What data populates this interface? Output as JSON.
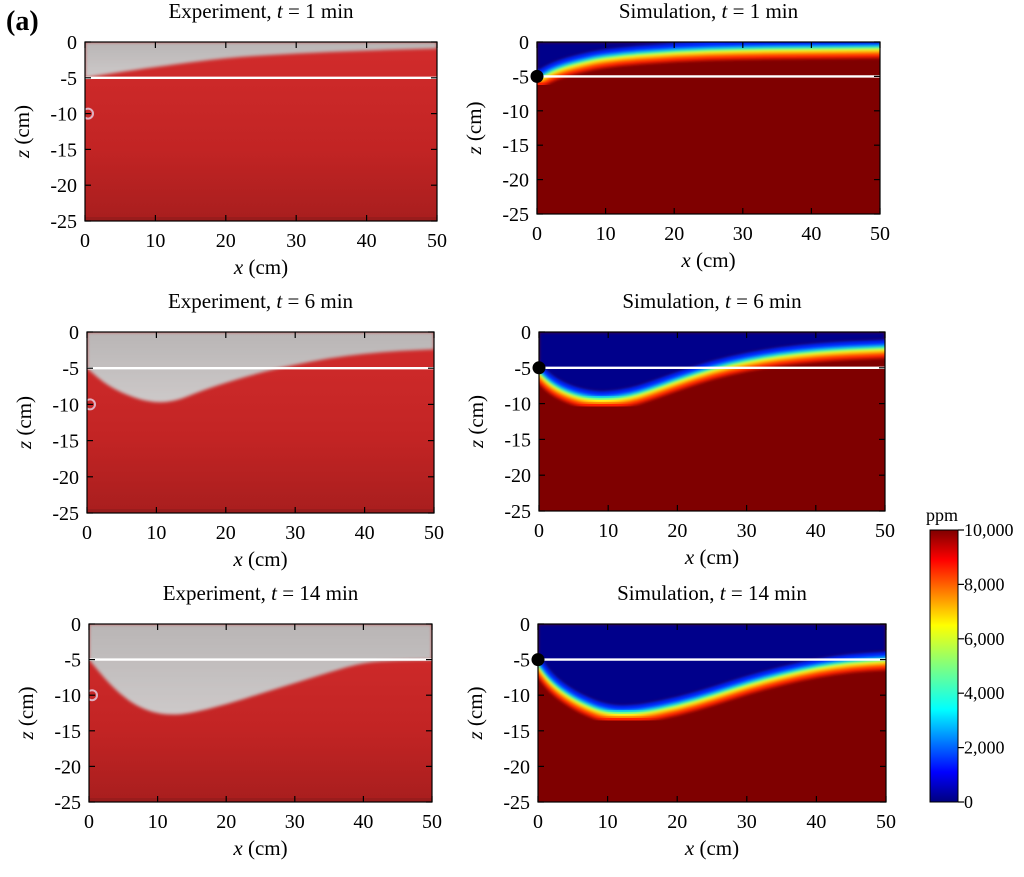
{
  "panel_label": "(a)",
  "colorbar": {
    "unit": "ppm",
    "ticks": [
      "10,000",
      "8,000",
      "6,000",
      "4,000",
      "2,000",
      "0"
    ],
    "min": 0,
    "max": 10000
  },
  "colors": {
    "plume_red": "#c62828",
    "saturated_red": "#7f0000",
    "fresh_blue": "#00008b",
    "experiment_gray": "#c4c0c0",
    "line_white": "#ffffff"
  },
  "chart_data": [
    {
      "type": "heatmap",
      "title": "Experiment, t = 1 min",
      "title_pre": "Experiment, ",
      "title_var": "t",
      "title_post": " = 1 min",
      "xlabel_var": "x",
      "xlabel_unit": " (cm)",
      "ylabel_var": "z",
      "ylabel_unit": " (cm)",
      "xlim": [
        0,
        50
      ],
      "ylim": [
        -25,
        0
      ],
      "xticks": [
        "0",
        "10",
        "20",
        "30",
        "40",
        "50"
      ],
      "yticks": [
        "0",
        "-5",
        "-10",
        "-15",
        "-20",
        "-25"
      ],
      "interface_depth": -5,
      "interface_x": [
        0,
        5,
        10,
        20,
        30,
        40,
        50
      ],
      "interface_z": [
        -5,
        -4.2,
        -3.5,
        -2.2,
        -1.6,
        -1.2,
        -0.9
      ]
    },
    {
      "type": "heatmap",
      "title": "Simulation, t = 1 min",
      "title_pre": "Simulation, ",
      "title_var": "t",
      "title_post": " = 1 min",
      "xlabel_var": "x",
      "xlabel_unit": " (cm)",
      "ylabel_var": "z",
      "ylabel_unit": " (cm)",
      "xlim": [
        0,
        50
      ],
      "ylim": [
        -25,
        0
      ],
      "xticks": [
        "0",
        "10",
        "20",
        "30",
        "40",
        "50"
      ],
      "yticks": [
        "0",
        "-5",
        "-10",
        "-15",
        "-20",
        "-25"
      ],
      "interface_depth": -5,
      "source_point": [
        0,
        -5
      ],
      "interface_x": [
        0,
        2,
        5,
        10,
        20,
        30,
        40,
        50
      ],
      "interface_z": [
        -5,
        -3.8,
        -2.8,
        -1.7,
        -0.9,
        -0.6,
        -0.5,
        -0.4
      ]
    },
    {
      "type": "heatmap",
      "title": "Experiment, t = 6 min",
      "title_pre": "Experiment, ",
      "title_var": "t",
      "title_post": " = 6 min",
      "xlabel_var": "x",
      "xlabel_unit": " (cm)",
      "ylabel_var": "z",
      "ylabel_unit": " (cm)",
      "xlim": [
        0,
        50
      ],
      "ylim": [
        -25,
        0
      ],
      "xticks": [
        "0",
        "10",
        "20",
        "30",
        "40",
        "50"
      ],
      "yticks": [
        "0",
        "-5",
        "-10",
        "-15",
        "-20",
        "-25"
      ],
      "interface_depth": -5,
      "interface_x": [
        0,
        3,
        7,
        10,
        13,
        16,
        20,
        25,
        30,
        35,
        40,
        45,
        50
      ],
      "interface_z": [
        -5,
        -7.5,
        -9.2,
        -9.8,
        -9.5,
        -8.3,
        -7.0,
        -5.6,
        -4.5,
        -3.6,
        -3.0,
        -2.6,
        -2.4
      ]
    },
    {
      "type": "heatmap",
      "title": "Simulation, t = 6 min",
      "title_pre": "Simulation, ",
      "title_var": "t",
      "title_post": " = 6 min",
      "xlabel_var": "x",
      "xlabel_unit": " (cm)",
      "ylabel_var": "z",
      "ylabel_unit": " (cm)",
      "xlim": [
        0,
        50
      ],
      "ylim": [
        -25,
        0
      ],
      "xticks": [
        "0",
        "10",
        "20",
        "30",
        "40",
        "50"
      ],
      "yticks": [
        "0",
        "-5",
        "-10",
        "-15",
        "-20",
        "-25"
      ],
      "interface_depth": -5,
      "source_point": [
        0,
        -5
      ],
      "interface_x": [
        0,
        2,
        5,
        8,
        10,
        13,
        16,
        20,
        25,
        30,
        35,
        40,
        45,
        50
      ],
      "interface_z": [
        -5,
        -7.0,
        -8.4,
        -9.0,
        -9.0,
        -8.6,
        -7.7,
        -6.3,
        -4.7,
        -3.6,
        -2.8,
        -2.3,
        -2.0,
        -1.8
      ]
    },
    {
      "type": "heatmap",
      "title": "Experiment, t = 14 min",
      "title_pre": "Experiment, ",
      "title_var": "t",
      "title_post": " = 14 min",
      "xlabel_var": "x",
      "xlabel_unit": " (cm)",
      "ylabel_var": "z",
      "ylabel_unit": " (cm)",
      "xlim": [
        0,
        50
      ],
      "ylim": [
        -25,
        0
      ],
      "xticks": [
        "0",
        "10",
        "20",
        "30",
        "40",
        "50"
      ],
      "yticks": [
        "0",
        "-5",
        "-10",
        "-15",
        "-20",
        "-25"
      ],
      "interface_depth": -5,
      "interface_x": [
        0,
        3,
        6,
        9,
        12,
        15,
        20,
        25,
        30,
        35,
        40,
        45,
        50
      ],
      "interface_z": [
        -5,
        -8.5,
        -11.0,
        -12.4,
        -12.8,
        -12.5,
        -11.3,
        -9.8,
        -8.3,
        -6.8,
        -5.4,
        -5.1,
        -5.0
      ]
    },
    {
      "type": "heatmap",
      "title": "Simulation, t = 14 min",
      "title_pre": "Simulation, ",
      "title_var": "t",
      "title_post": " = 14 min",
      "xlabel_var": "x",
      "xlabel_unit": " (cm)",
      "ylabel_var": "z",
      "ylabel_unit": " (cm)",
      "xlim": [
        0,
        50
      ],
      "ylim": [
        -25,
        0
      ],
      "xticks": [
        "0",
        "10",
        "20",
        "30",
        "40",
        "50"
      ],
      "yticks": [
        "0",
        "-5",
        "-10",
        "-15",
        "-20",
        "-25"
      ],
      "interface_depth": -5,
      "source_point": [
        0,
        -5
      ],
      "interface_x": [
        0,
        2,
        5,
        8,
        10,
        12,
        15,
        20,
        25,
        30,
        35,
        40,
        45,
        50
      ],
      "interface_z": [
        -5,
        -7.8,
        -10.0,
        -11.4,
        -12.0,
        -12.2,
        -12.0,
        -11.0,
        -9.6,
        -8.0,
        -6.7,
        -5.6,
        -4.9,
        -4.6
      ]
    }
  ]
}
